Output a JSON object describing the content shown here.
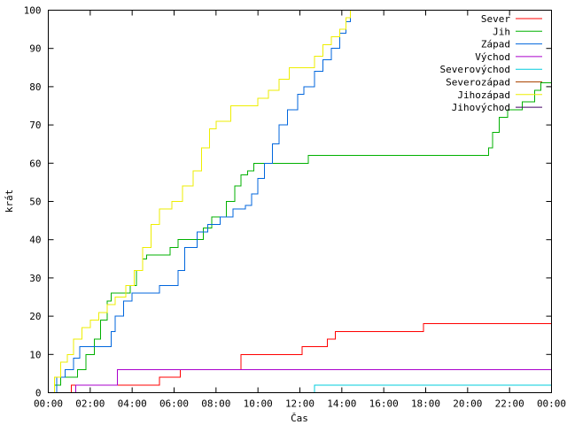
{
  "chart_data": {
    "type": "line",
    "xlabel": "Čas",
    "ylabel": "krát",
    "xlim_hours": [
      0,
      24
    ],
    "ylim": [
      0,
      100
    ],
    "x_ticks": [
      {
        "h": 0,
        "label": "00:00"
      },
      {
        "h": 2,
        "label": "02:00"
      },
      {
        "h": 4,
        "label": "04:00"
      },
      {
        "h": 6,
        "label": "06:00"
      },
      {
        "h": 8,
        "label": "08:00"
      },
      {
        "h": 10,
        "label": "10:00"
      },
      {
        "h": 12,
        "label": "12:00"
      },
      {
        "h": 14,
        "label": "14:00"
      },
      {
        "h": 16,
        "label": "16:00"
      },
      {
        "h": 18,
        "label": "18:00"
      },
      {
        "h": 20,
        "label": "20:00"
      },
      {
        "h": 22,
        "label": "22:00"
      },
      {
        "h": 24,
        "label": "00:00"
      }
    ],
    "y_ticks": [
      0,
      10,
      20,
      30,
      40,
      50,
      60,
      70,
      80,
      90,
      100
    ],
    "grid": false,
    "legend_position": "top-right",
    "series": [
      {
        "name": "Sever",
        "color": "#ff0000",
        "points": [
          [
            0,
            0
          ],
          [
            1.1,
            2
          ],
          [
            4.2,
            2
          ],
          [
            5.3,
            4
          ],
          [
            6.3,
            6
          ],
          [
            9.1,
            6
          ],
          [
            9.2,
            10
          ],
          [
            11.9,
            10
          ],
          [
            12.1,
            12
          ],
          [
            13.0,
            12
          ],
          [
            13.3,
            14
          ],
          [
            13.7,
            16
          ],
          [
            17.8,
            16
          ],
          [
            17.9,
            18
          ],
          [
            24,
            18
          ]
        ]
      },
      {
        "name": "Jih",
        "color": "#00b000",
        "points": [
          [
            0,
            0
          ],
          [
            0.3,
            2
          ],
          [
            0.6,
            4
          ],
          [
            1.0,
            4
          ],
          [
            1.4,
            6
          ],
          [
            1.8,
            10
          ],
          [
            2.2,
            14
          ],
          [
            2.5,
            19
          ],
          [
            2.8,
            24
          ],
          [
            3.0,
            26
          ],
          [
            3.6,
            26
          ],
          [
            3.9,
            28
          ],
          [
            4.2,
            32
          ],
          [
            4.5,
            35
          ],
          [
            4.7,
            36
          ],
          [
            5.5,
            36
          ],
          [
            5.8,
            38
          ],
          [
            6.2,
            40
          ],
          [
            7.0,
            40
          ],
          [
            7.4,
            43
          ],
          [
            7.8,
            46
          ],
          [
            8.2,
            46
          ],
          [
            8.5,
            50
          ],
          [
            8.9,
            54
          ],
          [
            9.2,
            57
          ],
          [
            9.5,
            58
          ],
          [
            9.8,
            60
          ],
          [
            12.2,
            60
          ],
          [
            12.4,
            62
          ],
          [
            20.9,
            62
          ],
          [
            21.0,
            64
          ],
          [
            21.2,
            68
          ],
          [
            21.5,
            72
          ],
          [
            21.9,
            74
          ],
          [
            22.6,
            76
          ],
          [
            23.2,
            79
          ],
          [
            23.5,
            81
          ],
          [
            24,
            81
          ]
        ]
      },
      {
        "name": "Západ",
        "color": "#0066dd",
        "points": [
          [
            0,
            0
          ],
          [
            0.4,
            4
          ],
          [
            0.8,
            6
          ],
          [
            1.2,
            9
          ],
          [
            1.5,
            12
          ],
          [
            2.8,
            12
          ],
          [
            3.0,
            16
          ],
          [
            3.2,
            20
          ],
          [
            3.6,
            24
          ],
          [
            4.0,
            26
          ],
          [
            5.0,
            26
          ],
          [
            5.3,
            28
          ],
          [
            5.9,
            28
          ],
          [
            6.2,
            32
          ],
          [
            6.5,
            38
          ],
          [
            7.1,
            42
          ],
          [
            7.6,
            44
          ],
          [
            8.2,
            46
          ],
          [
            8.8,
            48
          ],
          [
            9.4,
            49
          ],
          [
            9.7,
            52
          ],
          [
            10.0,
            56
          ],
          [
            10.3,
            60
          ],
          [
            10.7,
            65
          ],
          [
            11.0,
            70
          ],
          [
            11.4,
            74
          ],
          [
            11.9,
            78
          ],
          [
            12.2,
            80
          ],
          [
            12.7,
            84
          ],
          [
            13.1,
            87
          ],
          [
            13.5,
            90
          ],
          [
            13.9,
            94
          ],
          [
            14.2,
            97
          ],
          [
            14.4,
            100
          ]
        ]
      },
      {
        "name": "Východ",
        "color": "#aa00cc",
        "points": [
          [
            0,
            0
          ],
          [
            1.2,
            0
          ],
          [
            1.3,
            2
          ],
          [
            3.2,
            2
          ],
          [
            3.3,
            6
          ],
          [
            24,
            6
          ]
        ]
      },
      {
        "name": "Severovýchod",
        "color": "#00ccdd",
        "points": [
          [
            0,
            0
          ],
          [
            12.6,
            0
          ],
          [
            12.7,
            2
          ],
          [
            24,
            2
          ]
        ]
      },
      {
        "name": "Severozápad",
        "color": "#aa4400",
        "points": []
      },
      {
        "name": "Jihozápad",
        "color": "#eeee00",
        "points": [
          [
            0,
            0
          ],
          [
            0.3,
            4
          ],
          [
            0.6,
            8
          ],
          [
            0.9,
            10
          ],
          [
            1.2,
            14
          ],
          [
            1.6,
            17
          ],
          [
            2.0,
            19
          ],
          [
            2.4,
            21
          ],
          [
            2.8,
            23
          ],
          [
            3.2,
            25
          ],
          [
            3.7,
            28
          ],
          [
            4.1,
            32
          ],
          [
            4.5,
            38
          ],
          [
            4.9,
            44
          ],
          [
            5.3,
            48
          ],
          [
            5.9,
            50
          ],
          [
            6.4,
            54
          ],
          [
            6.9,
            58
          ],
          [
            7.3,
            64
          ],
          [
            7.7,
            69
          ],
          [
            8.0,
            71
          ],
          [
            8.4,
            71
          ],
          [
            8.7,
            75
          ],
          [
            9.0,
            75
          ],
          [
            9.7,
            75
          ],
          [
            10.0,
            77
          ],
          [
            10.5,
            79
          ],
          [
            11.0,
            82
          ],
          [
            11.5,
            85
          ],
          [
            12.3,
            85
          ],
          [
            12.7,
            88
          ],
          [
            13.1,
            91
          ],
          [
            13.5,
            93
          ],
          [
            13.9,
            95
          ],
          [
            14.2,
            98
          ],
          [
            14.4,
            100
          ]
        ]
      },
      {
        "name": "Jihovýchod",
        "color": "#440066",
        "points": []
      }
    ]
  }
}
